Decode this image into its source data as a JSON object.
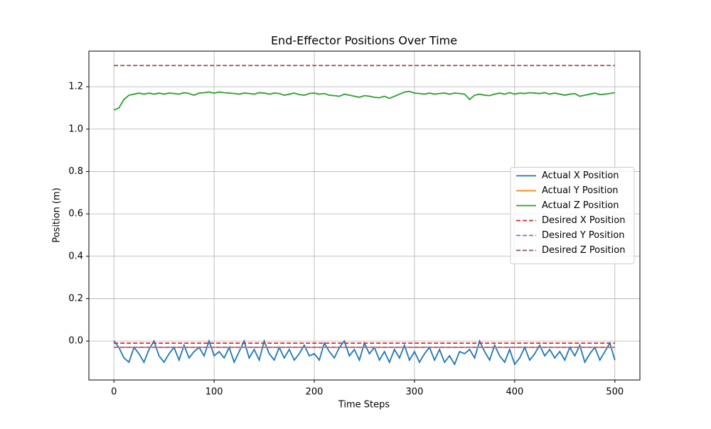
{
  "chart_data": {
    "type": "line",
    "title": "End-Effector Positions Over Time",
    "x_label": "Time Steps",
    "y_label": "Position (m)",
    "x": [
      0,
      5,
      10,
      15,
      20,
      25,
      30,
      35,
      40,
      45,
      50,
      55,
      60,
      65,
      70,
      75,
      80,
      85,
      90,
      95,
      100,
      105,
      110,
      115,
      120,
      125,
      130,
      135,
      140,
      145,
      150,
      155,
      160,
      165,
      170,
      175,
      180,
      185,
      190,
      195,
      200,
      205,
      210,
      215,
      220,
      225,
      230,
      235,
      240,
      245,
      250,
      255,
      260,
      265,
      270,
      275,
      280,
      285,
      290,
      295,
      300,
      305,
      310,
      315,
      320,
      325,
      330,
      335,
      340,
      345,
      350,
      355,
      360,
      365,
      370,
      375,
      380,
      385,
      390,
      395,
      400,
      405,
      410,
      415,
      420,
      425,
      430,
      435,
      440,
      445,
      450,
      455,
      460,
      465,
      470,
      475,
      480,
      485,
      490,
      495,
      500
    ],
    "series": [
      {
        "name": "Actual X Position",
        "color": "#1f77b4",
        "linestyle": "solid",
        "values": [
          0,
          -0.03,
          -0.08,
          -0.1,
          -0.03,
          -0.06,
          -0.1,
          -0.04,
          0,
          -0.07,
          -0.1,
          -0.06,
          -0.03,
          -0.09,
          -0.02,
          -0.08,
          -0.05,
          -0.03,
          -0.07,
          0,
          -0.07,
          -0.05,
          -0.08,
          -0.03,
          -0.1,
          -0.05,
          0,
          -0.08,
          -0.04,
          -0.09,
          0,
          -0.06,
          -0.09,
          -0.03,
          -0.08,
          -0.04,
          -0.09,
          -0.06,
          -0.02,
          -0.07,
          -0.06,
          -0.09,
          -0.01,
          -0.05,
          -0.08,
          -0.03,
          0,
          -0.07,
          -0.04,
          -0.09,
          -0.01,
          -0.06,
          -0.03,
          -0.09,
          -0.05,
          -0.1,
          -0.04,
          -0.08,
          -0.02,
          -0.09,
          -0.05,
          -0.1,
          -0.06,
          -0.03,
          -0.09,
          -0.04,
          -0.1,
          -0.07,
          -0.11,
          -0.05,
          -0.06,
          -0.04,
          -0.08,
          0,
          -0.05,
          -0.09,
          -0.02,
          -0.07,
          -0.1,
          -0.04,
          -0.11,
          -0.08,
          -0.03,
          -0.09,
          -0.06,
          -0.02,
          -0.07,
          -0.04,
          -0.08,
          -0.05,
          -0.09,
          -0.03,
          -0.07,
          -0.02,
          -0.1,
          -0.06,
          -0.03,
          -0.09,
          -0.05,
          -0.01,
          -0.09
        ]
      },
      {
        "name": "Actual Y Position",
        "color": "#ff7f0e",
        "linestyle": "solid",
        "x": [
          0,
          500
        ],
        "values": [
          -0.03,
          -0.03
        ]
      },
      {
        "name": "Actual Z Position",
        "color": "#2ca02c",
        "linestyle": "solid",
        "values": [
          1.09,
          1.1,
          1.14,
          1.16,
          1.165,
          1.17,
          1.165,
          1.17,
          1.165,
          1.17,
          1.165,
          1.17,
          1.168,
          1.165,
          1.172,
          1.168,
          1.16,
          1.17,
          1.172,
          1.175,
          1.17,
          1.175,
          1.172,
          1.17,
          1.168,
          1.165,
          1.17,
          1.168,
          1.165,
          1.172,
          1.17,
          1.165,
          1.17,
          1.168,
          1.16,
          1.165,
          1.17,
          1.163,
          1.16,
          1.168,
          1.17,
          1.165,
          1.168,
          1.16,
          1.158,
          1.155,
          1.165,
          1.16,
          1.155,
          1.15,
          1.158,
          1.155,
          1.15,
          1.148,
          1.155,
          1.145,
          1.155,
          1.165,
          1.175,
          1.178,
          1.17,
          1.168,
          1.165,
          1.17,
          1.165,
          1.168,
          1.17,
          1.165,
          1.17,
          1.168,
          1.165,
          1.14,
          1.16,
          1.165,
          1.16,
          1.158,
          1.165,
          1.17,
          1.165,
          1.172,
          1.165,
          1.17,
          1.168,
          1.172,
          1.17,
          1.168,
          1.172,
          1.165,
          1.17,
          1.165,
          1.16,
          1.165,
          1.168,
          1.155,
          1.16,
          1.165,
          1.17,
          1.163,
          1.165,
          1.168,
          1.172
        ]
      },
      {
        "name": "Desired X Position",
        "color": "#d62728",
        "linestyle": "dashed",
        "x": [
          0,
          500
        ],
        "values": [
          -0.01,
          -0.01
        ]
      },
      {
        "name": "Desired Y Position",
        "color": "#9467bd",
        "linestyle": "dashed",
        "x": [
          0,
          500
        ],
        "values": [
          -0.03,
          -0.03
        ]
      },
      {
        "name": "Desired Z Position",
        "color": "#8c564b",
        "linestyle": "dashed",
        "x": [
          0,
          500
        ],
        "values": [
          1.3,
          1.3
        ]
      }
    ],
    "xlim": [
      -25,
      525
    ],
    "ylim": [
      -0.184,
      1.368
    ],
    "xticks": [
      0,
      100,
      200,
      300,
      400,
      500
    ],
    "yticks": [
      {
        "value": 0,
        "label": "0.0"
      },
      0.2,
      0.4,
      0.6,
      0.8,
      {
        "value": 1,
        "label": "1.0"
      },
      1.2
    ],
    "grid": true,
    "legend": "center right"
  }
}
